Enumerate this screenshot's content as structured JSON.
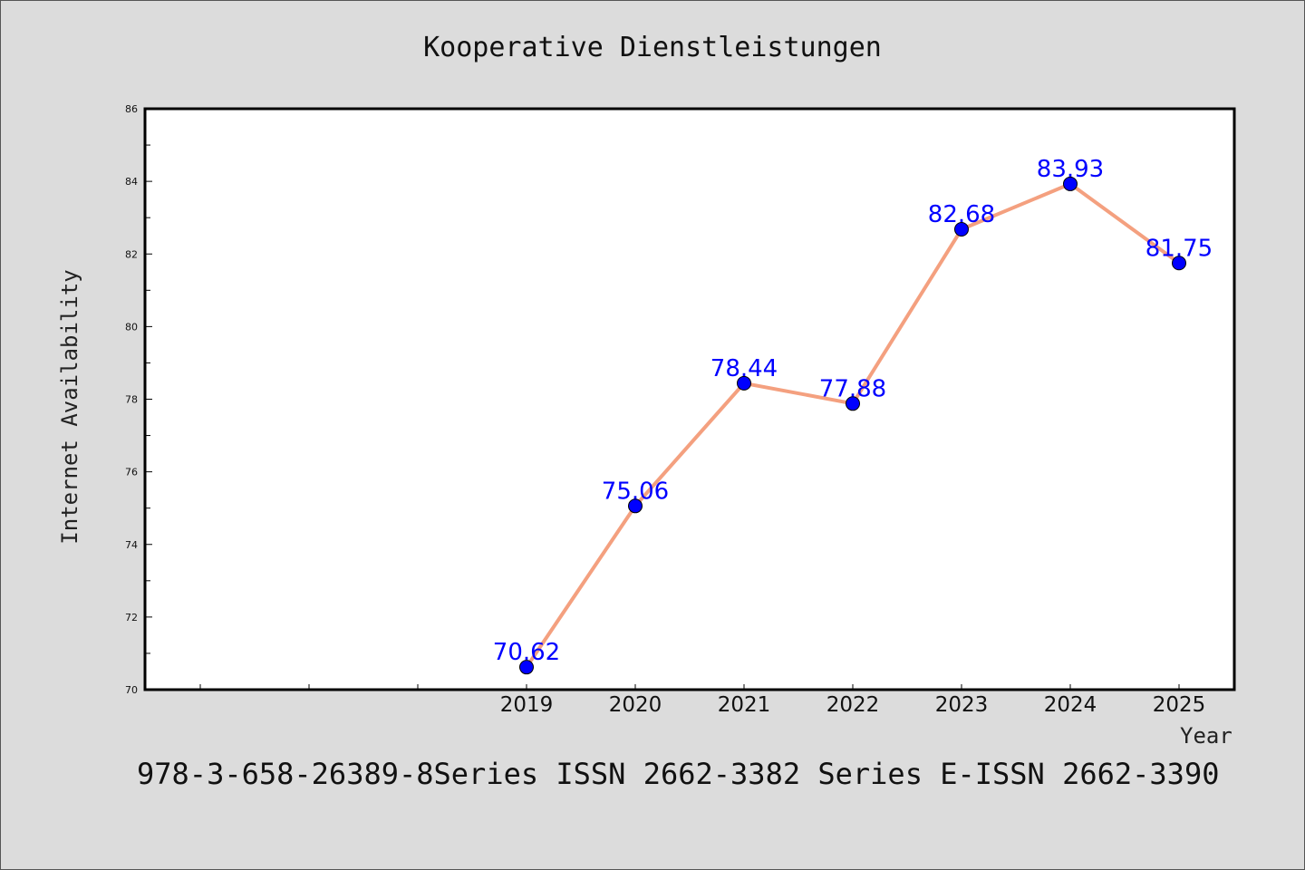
{
  "chart_data": {
    "type": "line",
    "title": "Kooperative Dienstleistungen",
    "xlabel": "Year",
    "ylabel": "Internet Availability",
    "categories": [
      "2019",
      "2020",
      "2021",
      "2022",
      "2023",
      "2024",
      "2025"
    ],
    "series": [
      {
        "values": [
          70.62,
          75.06,
          78.44,
          77.88,
          82.68,
          83.93,
          81.75
        ],
        "data_labels": [
          "70.62",
          "75.06",
          "78.44",
          "77.88",
          "82.68",
          "83.93",
          "81.75"
        ],
        "line_color": "#f4a07f",
        "marker_color": "#0000ff"
      }
    ],
    "ylim": [
      70,
      86
    ],
    "yticks": [
      "70",
      "72",
      "74",
      "76",
      "78",
      "80",
      "82",
      "84",
      "86"
    ],
    "grid": false,
    "legend": "none"
  },
  "footer": "978-3-658-26389-8Series ISSN 2662-3382 Series E-ISSN 2662-3390",
  "colors": {
    "background": "#dcdcdc",
    "plot_background": "#ffffff",
    "axis": "#000000"
  }
}
